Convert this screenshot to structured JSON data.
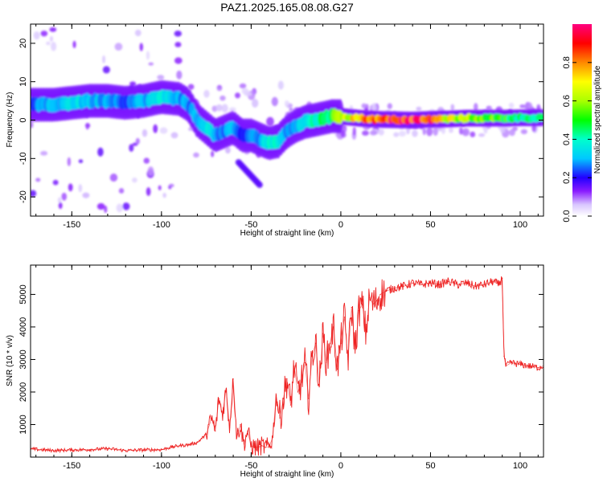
{
  "title": "PAZ1.2025.165.08.08.G27",
  "chart_data": [
    {
      "type": "heatmap",
      "xlabel": "Height of straight line (km)",
      "ylabel": "Frequency (Hz)",
      "xlim": [
        -173,
        113
      ],
      "ylim": [
        -25,
        25
      ],
      "xticks": [
        -150,
        -100,
        -50,
        0,
        50,
        100
      ],
      "yticks": [
        -20,
        -10,
        0,
        10,
        20
      ],
      "colorbar": {
        "label": "Normalized spectral amplitude",
        "range": [
          0.0,
          1.0
        ],
        "ticks": [
          0.0,
          0.2,
          0.4,
          0.6,
          0.8
        ],
        "tick_labels": [
          "0.0",
          "0.2",
          "0.4",
          "0.6",
          "0.8"
        ]
      },
      "ridge": {
        "x": [
          -170,
          -160,
          -150,
          -140,
          -130,
          -120,
          -110,
          -100,
          -90,
          -85,
          -80,
          -75,
          -70,
          -65,
          -60,
          -55,
          -50,
          -45,
          -40,
          -35,
          -30,
          -25,
          -20,
          -15,
          -10,
          -5,
          0,
          10,
          20,
          30,
          40,
          50,
          60,
          70,
          80,
          90,
          100,
          113
        ],
        "frequency": [
          4,
          4,
          4.5,
          5,
          5,
          4.5,
          5,
          6,
          5.5,
          4,
          0,
          -2,
          -4,
          -3,
          -2,
          -4,
          -4,
          -5,
          -6,
          -5.5,
          -3,
          -1.5,
          -0.5,
          0,
          0.5,
          1,
          1,
          0.5,
          0.2,
          0.1,
          0,
          0.2,
          0.3,
          0.5,
          0.5,
          0.5,
          0.6,
          0.6
        ],
        "amplitude": [
          0.25,
          0.3,
          0.35,
          0.3,
          0.3,
          0.25,
          0.3,
          0.35,
          0.3,
          0.25,
          0.3,
          0.35,
          0.3,
          0.25,
          0.3,
          0.2,
          0.25,
          0.3,
          0.4,
          0.35,
          0.3,
          0.3,
          0.35,
          0.4,
          0.45,
          0.5,
          0.6,
          0.75,
          0.85,
          0.95,
          0.9,
          0.85,
          0.65,
          0.6,
          0.55,
          0.5,
          0.45,
          0.4
        ]
      }
    },
    {
      "type": "line",
      "xlabel": "Height of straight line (km)",
      "ylabel": "SNR (10 * v/v)",
      "xlim": [
        -173,
        113
      ],
      "ylim": [
        0,
        5900
      ],
      "xticks": [
        -150,
        -100,
        -50,
        0,
        50,
        100
      ],
      "yticks": [
        1000,
        2000,
        3000,
        4000,
        5000
      ],
      "color": "#ee2222",
      "series": [
        {
          "x": [
            -173,
            -160,
            -150,
            -140,
            -130,
            -120,
            -110,
            -100,
            -95,
            -90,
            -85,
            -80,
            -75,
            -72,
            -70,
            -68,
            -66,
            -64,
            -62,
            -60,
            -58,
            -56,
            -54,
            -52,
            -50,
            -48,
            -46,
            -44,
            -42,
            -40,
            -38,
            -36,
            -34,
            -32,
            -30,
            -28,
            -26,
            -24,
            -22,
            -20,
            -18,
            -16,
            -14,
            -12,
            -10,
            -8,
            -6,
            -4,
            -2,
            0,
            2,
            4,
            6,
            8,
            10,
            12,
            14,
            16,
            18,
            20,
            22,
            25,
            30,
            35,
            40,
            45,
            50,
            55,
            60,
            65,
            70,
            75,
            80,
            85,
            88,
            90,
            91,
            92,
            95,
            100,
            105,
            110,
            113
          ],
          "values": [
            250,
            200,
            220,
            230,
            260,
            200,
            220,
            230,
            300,
            350,
            380,
            450,
            700,
            1200,
            800,
            1800,
            1300,
            2100,
            900,
            2400,
            600,
            1000,
            400,
            800,
            350,
            300,
            300,
            350,
            300,
            320,
            600,
            1900,
            1200,
            1800,
            2400,
            1600,
            2800,
            2000,
            2300,
            2900,
            1800,
            3100,
            3500,
            2200,
            3800,
            2900,
            3500,
            4000,
            2700,
            3500,
            4300,
            3000,
            4600,
            3300,
            4500,
            4700,
            3800,
            4900,
            4700,
            4800,
            5000,
            5100,
            5200,
            5250,
            5350,
            5300,
            5350,
            5300,
            5400,
            5300,
            5350,
            5250,
            5300,
            5400,
            5300,
            5500,
            3100,
            2800,
            2900,
            2850,
            2800,
            2750,
            2800
          ]
        }
      ]
    }
  ]
}
